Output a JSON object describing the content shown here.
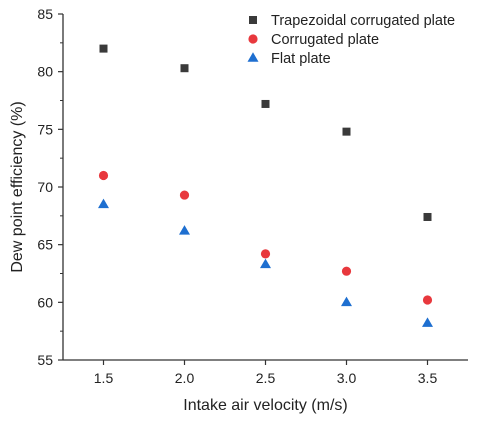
{
  "chart_data": {
    "type": "scatter",
    "xlabel": "Intake air velocity (m/s)",
    "ylabel": "Dew point efficiency (%)",
    "xlim": [
      1.25,
      3.75
    ],
    "ylim": [
      55,
      85
    ],
    "xticks": [
      "1.5",
      "2.0",
      "2.5",
      "3.0",
      "3.5"
    ],
    "yticks": [
      "55",
      "60",
      "65",
      "70",
      "75",
      "80",
      "85"
    ],
    "x": [
      1.5,
      2.0,
      2.5,
      3.0,
      3.5
    ],
    "grid": false,
    "legend_position": "top-right",
    "series": [
      {
        "name": "Trapezoidal corrugated plate",
        "marker": "square",
        "color": "#3a3a3a",
        "values": [
          82.0,
          80.3,
          77.2,
          74.8,
          67.4
        ]
      },
      {
        "name": "Corrugated plate",
        "marker": "circle",
        "color": "#e8383d",
        "values": [
          71.0,
          69.3,
          64.2,
          62.7,
          60.2
        ]
      },
      {
        "name": "Flat plate",
        "marker": "triangle",
        "color": "#1e6fd0",
        "values": [
          68.5,
          66.2,
          63.3,
          60.0,
          58.2
        ]
      }
    ]
  }
}
